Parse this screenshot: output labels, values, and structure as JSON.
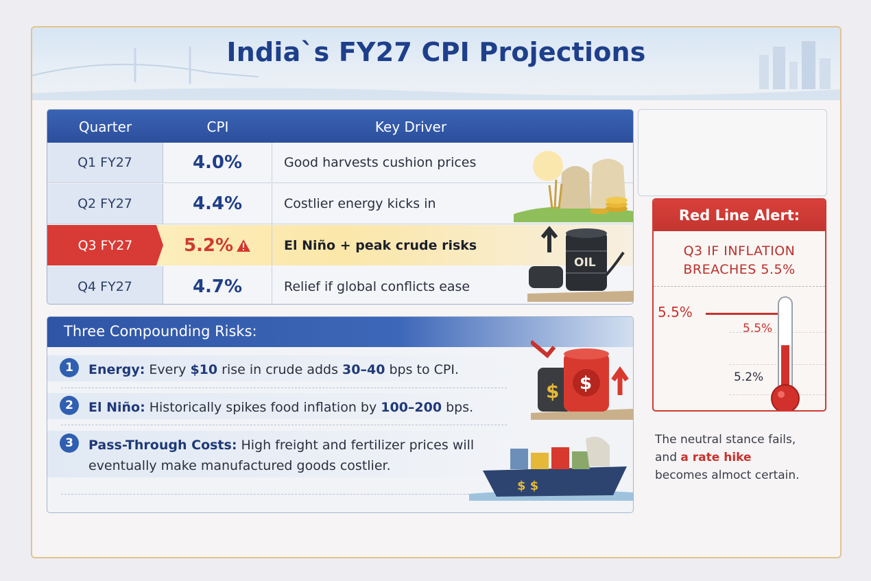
{
  "title": "India`s FY27 CPI Projections",
  "table": {
    "headers": [
      "Quarter",
      "CPI",
      "Key Driver"
    ],
    "rows": [
      {
        "quarter": "Q1 FY27",
        "cpi": "4.0%",
        "driver": "Good harvests cushion prices"
      },
      {
        "quarter": "Q2 FY27",
        "cpi": "4.4%",
        "driver": "Costlier energy kicks in"
      },
      {
        "quarter": "Q3 FY27",
        "cpi": "5.2%",
        "driver": "El Niño + peak crude risks"
      },
      {
        "quarter": "Q4 FY27",
        "cpi": "4.7%",
        "driver": "Relief if global conflicts ease"
      }
    ],
    "oil_barrel_label": "OIL"
  },
  "risks": {
    "title": "Three Compounding Risks:",
    "items": [
      {
        "num": "1",
        "label": "Energy:",
        "text": " Every ",
        "b1": "$10",
        "t2": " rise in crude adds ",
        "b2": "30–40",
        "t3": " bps to CPI."
      },
      {
        "num": "2",
        "label": "El Niño:",
        "text": " Historically spikes food inflation by ",
        "b1": "100–200",
        "t2": " bps.",
        "b2": "",
        "t3": ""
      },
      {
        "num": "3",
        "label": "Pass-Through Costs:",
        "text": " High freight and fertilizer prices will",
        "line2": "eventually make manufactured goods costlier."
      }
    ]
  },
  "alert": {
    "title": "Red Line Alert:",
    "sub_line1": "Q3 IF INFLATION",
    "sub_line2": "BREACHES 5.5%",
    "threshold_left": "5.5%",
    "threshold_right": "5.5%",
    "current": "5.2%",
    "thermometer_fill_pct": 52
  },
  "note": {
    "line1": "The neutral stance fails,",
    "pre": "and ",
    "highlight": "a rate hike",
    "line3": "becomes almoct certain."
  },
  "colors": {
    "navy": "#1e3f8a",
    "header_blue": "#2c4f9c",
    "alert_red": "#cf3b33"
  }
}
